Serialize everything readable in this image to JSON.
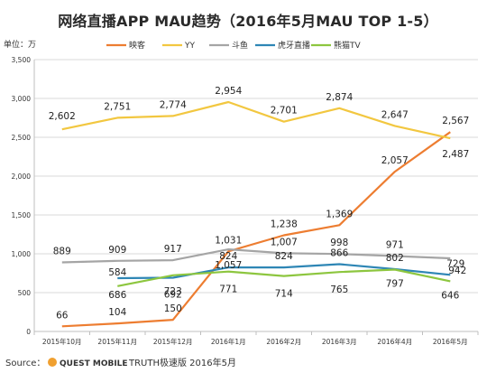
{
  "chart_data": {
    "type": "line",
    "title": "网络直播APP MAU趋势（2016年5月MAU TOP 1-5）",
    "unit_label": "单位：万",
    "categories": [
      "2015年10月",
      "2015年11月",
      "2015年12月",
      "2016年1月",
      "2016年2月",
      "2016年3月",
      "2016年4月",
      "2016年5月"
    ],
    "ylim": [
      0,
      3500
    ],
    "yticks": [
      "0",
      "500",
      "1,000",
      "1,500",
      "2,000",
      "2,500",
      "3,000",
      "3,500"
    ],
    "grid": true,
    "legend_placement": "top",
    "series": [
      {
        "name": "映客",
        "color": "#ED7D31",
        "values": [
          66,
          104,
          150,
          1031,
          1238,
          1369,
          2057,
          2567
        ],
        "labels": [
          "66",
          "104",
          "150",
          "1,031",
          "1,238",
          "1,369",
          "2,057",
          "2,567"
        ]
      },
      {
        "name": "YY",
        "color": "#F2C740",
        "values": [
          2602,
          2751,
          2774,
          2954,
          2701,
          2874,
          2647,
          2487
        ],
        "labels": [
          "2,602",
          "2,751",
          "2,774",
          "2,954",
          "2,701",
          "2,874",
          "2,647",
          "2,487"
        ]
      },
      {
        "name": "斗鱼",
        "color": "#A5A5A5",
        "values": [
          889,
          909,
          917,
          1057,
          1007,
          998,
          971,
          942
        ],
        "labels": [
          "889",
          "909",
          "917",
          "1,057",
          "1,007",
          "998",
          "971",
          "942"
        ]
      },
      {
        "name": "虎牙直播",
        "color": "#2E86B5",
        "values": [
          null,
          686,
          692,
          824,
          824,
          866,
          802,
          729
        ],
        "labels": [
          "",
          "686",
          "692",
          "824",
          "824",
          "866",
          "802",
          "729"
        ]
      },
      {
        "name": "熊猫TV",
        "color": "#8DC63F",
        "values": [
          null,
          584,
          723,
          771,
          714,
          765,
          797,
          646
        ],
        "labels": [
          "",
          "584",
          "723",
          "771",
          "714",
          "765",
          "797",
          "646"
        ]
      }
    ],
    "source": "Source：",
    "source_brand": "QUEST MOBILE",
    "source_detail": "TRUTH极速版 2016年5月"
  }
}
